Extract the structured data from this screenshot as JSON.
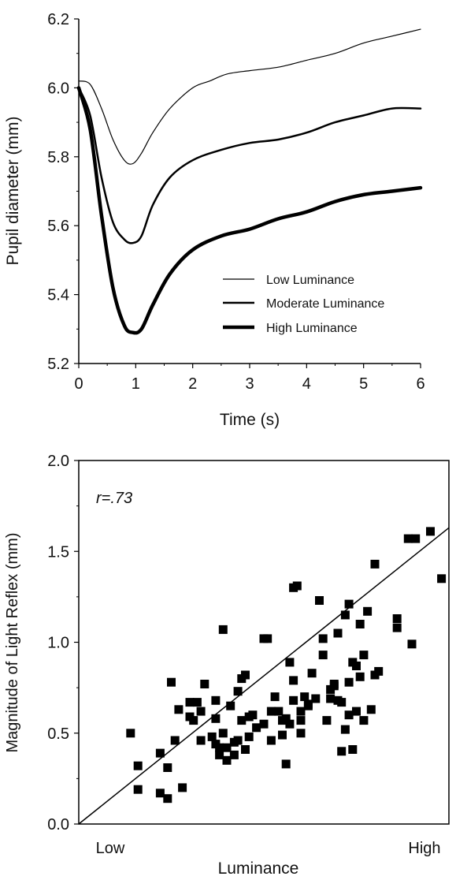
{
  "chart_data": [
    {
      "type": "line",
      "xlabel": "Time (s)",
      "ylabel": "Pupil diameter (mm)",
      "xlim": [
        0,
        6
      ],
      "ylim": [
        5.2,
        6.2
      ],
      "xticks": [
        "0",
        "1",
        "2",
        "3",
        "4",
        "5",
        "6"
      ],
      "yticks": [
        "5.2",
        "5.4",
        "5.6",
        "5.8",
        "6.0",
        "6.2"
      ],
      "grid": false,
      "legend_position": "lower-right",
      "series": [
        {
          "name": "Low Luminance",
          "x": [
            0,
            0.2,
            0.4,
            0.6,
            0.8,
            0.95,
            1.1,
            1.3,
            1.6,
            2.0,
            2.3,
            2.6,
            3.0,
            3.5,
            4.0,
            4.5,
            5.0,
            5.5,
            6.0
          ],
          "y": [
            6.02,
            6.01,
            5.94,
            5.85,
            5.79,
            5.78,
            5.81,
            5.87,
            5.94,
            6.0,
            6.02,
            6.04,
            6.05,
            6.06,
            6.08,
            6.1,
            6.13,
            6.15,
            6.17
          ]
        },
        {
          "name": "Moderate Luminance",
          "x": [
            0,
            0.2,
            0.4,
            0.6,
            0.8,
            0.95,
            1.1,
            1.3,
            1.6,
            2.0,
            2.5,
            3.0,
            3.5,
            4.0,
            4.5,
            5.0,
            5.5,
            6.0
          ],
          "y": [
            6.0,
            5.92,
            5.74,
            5.61,
            5.56,
            5.55,
            5.57,
            5.66,
            5.74,
            5.79,
            5.82,
            5.84,
            5.85,
            5.87,
            5.9,
            5.92,
            5.94,
            5.94
          ]
        },
        {
          "name": "High Luminance",
          "x": [
            0,
            0.2,
            0.4,
            0.6,
            0.8,
            0.95,
            1.1,
            1.3,
            1.6,
            2.0,
            2.5,
            3.0,
            3.5,
            4.0,
            4.5,
            5.0,
            5.5,
            6.0
          ],
          "y": [
            6.0,
            5.88,
            5.63,
            5.42,
            5.31,
            5.29,
            5.3,
            5.37,
            5.46,
            5.53,
            5.57,
            5.59,
            5.62,
            5.64,
            5.67,
            5.69,
            5.7,
            5.71
          ]
        }
      ]
    },
    {
      "type": "scatter",
      "xlabel": "Luminance",
      "ylabel": "Magnitude of Light Reflex (mm)",
      "xticks": [
        "Low",
        "High"
      ],
      "yticks": [
        "0.0",
        "0.5",
        "1.0",
        "1.5",
        "2.0"
      ],
      "ylim": [
        0,
        2.0
      ],
      "xlim": [
        0,
        1
      ],
      "annotation": "r=.73",
      "grid": false,
      "trendline": {
        "x": [
          0,
          1
        ],
        "y": [
          0,
          1.63
        ]
      },
      "x": [
        0.14,
        0.16,
        0.16,
        0.22,
        0.22,
        0.24,
        0.25,
        0.24,
        0.28,
        0.26,
        0.27,
        0.3,
        0.3,
        0.31,
        0.32,
        0.33,
        0.34,
        0.33,
        0.36,
        0.37,
        0.37,
        0.38,
        0.37,
        0.39,
        0.4,
        0.39,
        0.42,
        0.42,
        0.41,
        0.43,
        0.44,
        0.44,
        0.45,
        0.46,
        0.43,
        0.46,
        0.47,
        0.48,
        0.45,
        0.38,
        0.4,
        0.5,
        0.52,
        0.53,
        0.52,
        0.5,
        0.51,
        0.54,
        0.55,
        0.55,
        0.56,
        0.58,
        0.6,
        0.61,
        0.62,
        0.57,
        0.58,
        0.59,
        0.56,
        0.57,
        0.6,
        0.6,
        0.64,
        0.67,
        0.68,
        0.69,
        0.71,
        0.72,
        0.7,
        0.73,
        0.74,
        0.73,
        0.75,
        0.76,
        0.76,
        0.77,
        0.79,
        0.8,
        0.78,
        0.81,
        0.66,
        0.69,
        0.62,
        0.63,
        0.65,
        0.74,
        0.72,
        0.77,
        0.8,
        0.71,
        0.86,
        0.86,
        0.91,
        0.9,
        0.89,
        0.7,
        0.68,
        0.73,
        0.75,
        0.66,
        0.58,
        0.95,
        0.98
      ],
      "y": [
        0.5,
        0.19,
        0.32,
        0.17,
        0.39,
        0.14,
        0.78,
        0.31,
        0.2,
        0.46,
        0.63,
        0.59,
        0.67,
        0.57,
        0.67,
        0.62,
        0.77,
        0.46,
        0.48,
        0.58,
        0.44,
        0.42,
        0.68,
        0.5,
        0.35,
        1.07,
        0.38,
        0.45,
        0.65,
        0.46,
        0.57,
        0.8,
        0.82,
        0.48,
        0.73,
        0.59,
        0.6,
        0.53,
        0.41,
        0.38,
        0.42,
        0.55,
        0.62,
        0.7,
        0.46,
        1.02,
        1.02,
        0.62,
        0.57,
        0.49,
        0.58,
        0.68,
        0.57,
        0.7,
        0.66,
        0.55,
        0.79,
        1.31,
        0.33,
        0.89,
        0.62,
        0.5,
        0.69,
        0.57,
        0.69,
        0.76,
        0.67,
        0.52,
        1.05,
        0.78,
        0.89,
        1.21,
        0.87,
        0.81,
        1.1,
        0.57,
        0.63,
        0.82,
        1.17,
        0.84,
        0.93,
        0.77,
        0.65,
        0.83,
        1.23,
        0.41,
        1.15,
        0.93,
        1.43,
        0.4,
        1.13,
        1.08,
        1.57,
        0.99,
        1.57,
        0.68,
        0.74,
        0.6,
        0.62,
        1.02,
        1.3,
        1.61,
        1.35
      ]
    }
  ],
  "legend_labels": [
    "Low Luminance",
    "Moderate Luminance",
    "High Luminance"
  ]
}
